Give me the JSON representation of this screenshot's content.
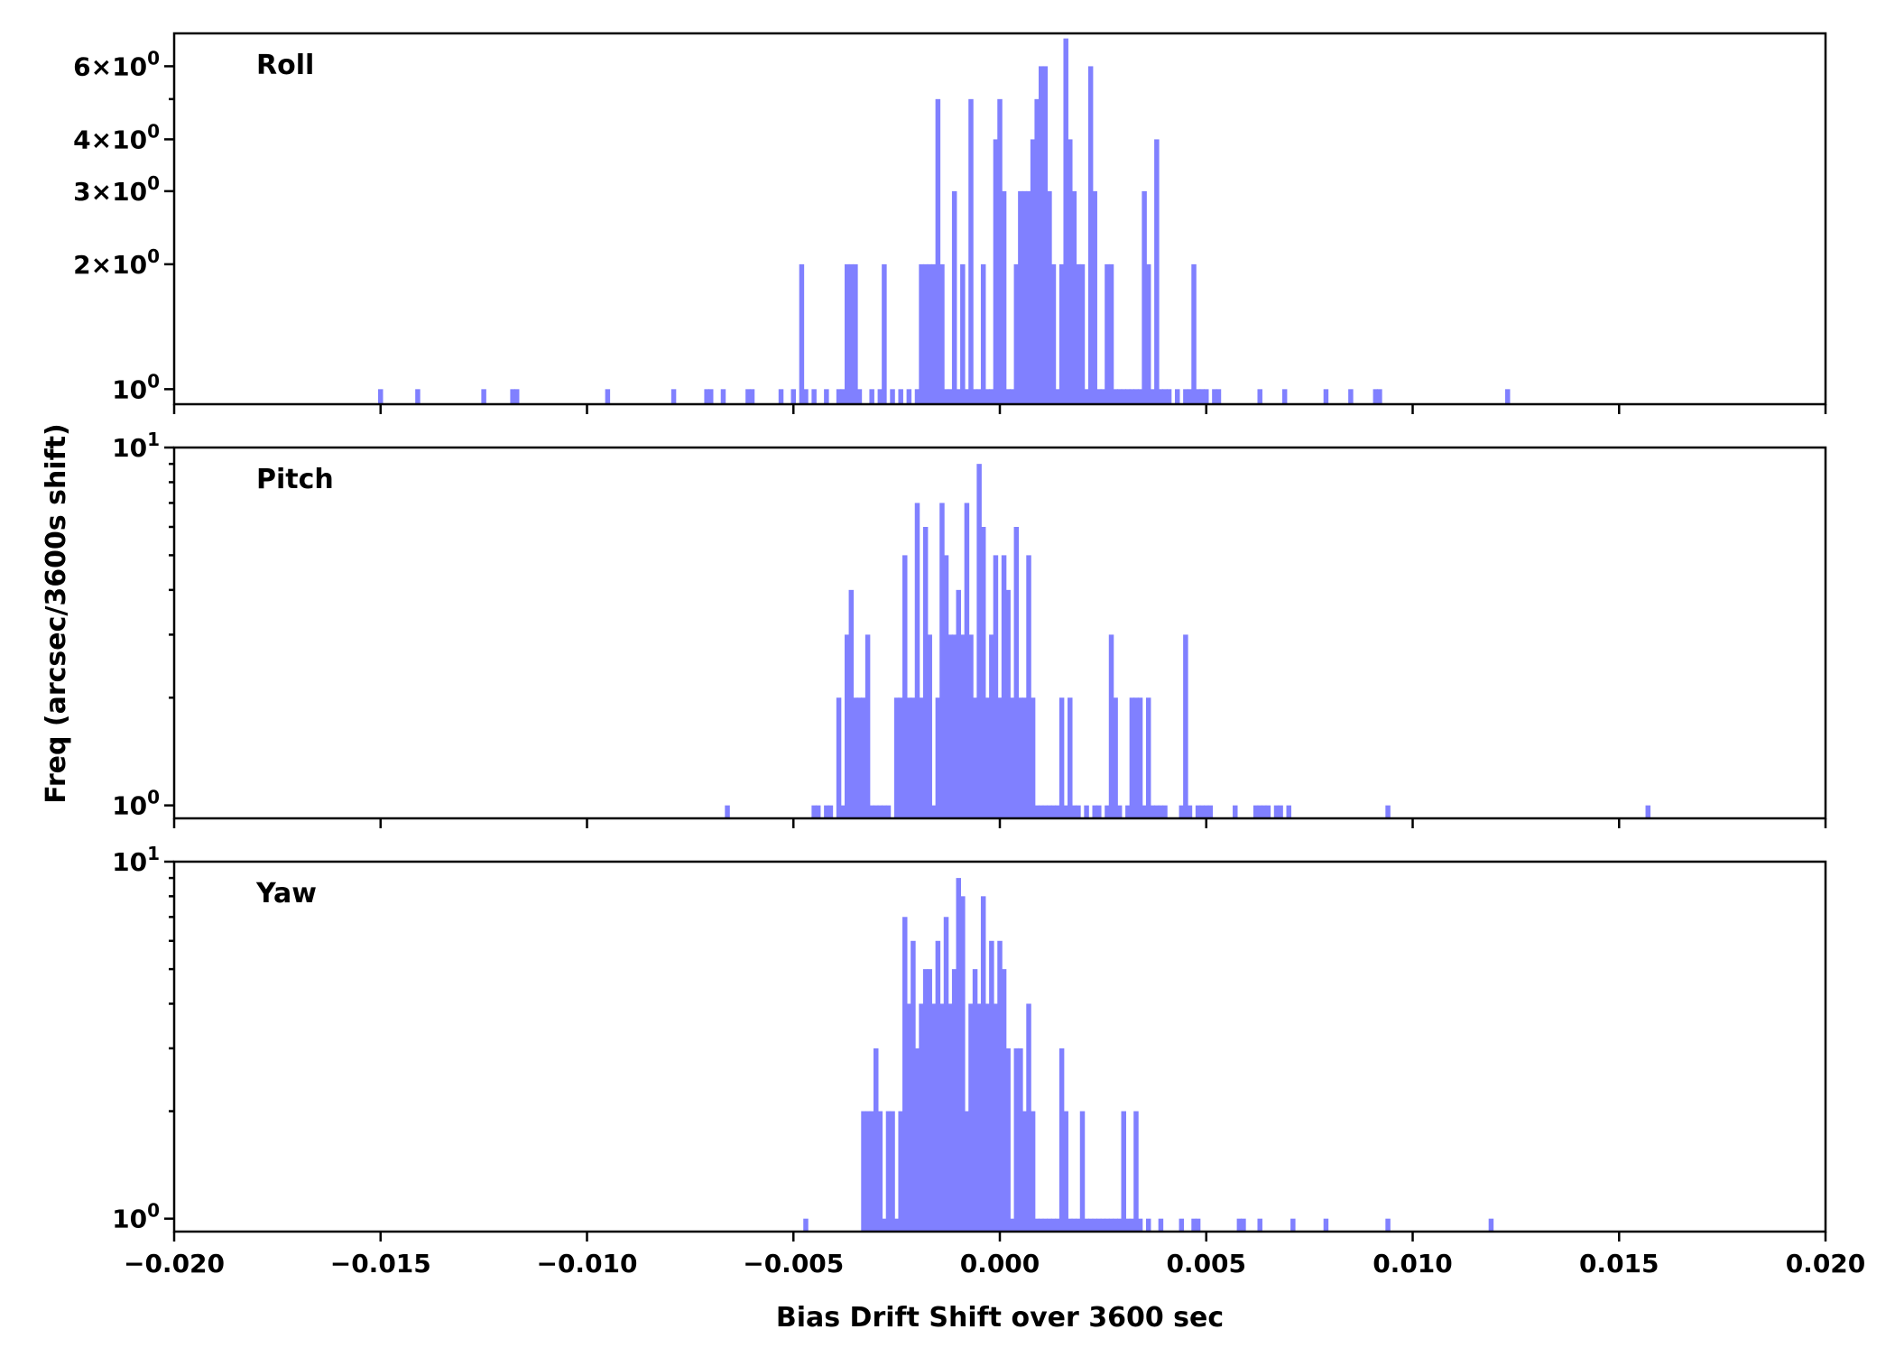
{
  "chart_data": {
    "type": "bar",
    "xlabel": "Bias Drift Shift over 3600 sec",
    "ylabel": "Freq (arcsec/3600s shift)",
    "xlim": [
      -0.02,
      0.02
    ],
    "x_ticks": [
      "−0.020",
      "−0.015",
      "−0.010",
      "−0.005",
      "0.000",
      "0.005",
      "0.010",
      "0.015",
      "0.020"
    ],
    "x_tick_values": [
      -0.02,
      -0.015,
      -0.01,
      -0.005,
      0.0,
      0.005,
      0.01,
      0.015,
      0.02
    ],
    "y_scale": "log",
    "bar_width": 0.00012,
    "bar_color": "#8080ff",
    "panels": [
      {
        "label": "Roll",
        "ylim": [
          0.92,
          7.2
        ],
        "y_ticks": [
          {
            "value": 1,
            "mant": "",
            "exp": "0"
          },
          {
            "value": 2,
            "mant": "2",
            "exp": "0"
          },
          {
            "value": 3,
            "mant": "3",
            "exp": "0"
          },
          {
            "value": 4,
            "mant": "4",
            "exp": "0"
          },
          {
            "value": 6,
            "mant": "6",
            "exp": "0"
          }
        ],
        "minor_ticks": [
          5
        ],
        "bars": [
          [
            -0.015,
            1
          ],
          [
            -0.0141,
            1
          ],
          [
            -0.0125,
            1
          ],
          [
            -0.0118,
            1
          ],
          [
            -0.0117,
            1
          ],
          [
            -0.0095,
            1
          ],
          [
            -0.0079,
            1
          ],
          [
            -0.0071,
            1
          ],
          [
            -0.007,
            1
          ],
          [
            -0.0067,
            1
          ],
          [
            -0.0061,
            1
          ],
          [
            -0.006,
            1
          ],
          [
            -0.0053,
            1
          ],
          [
            -0.005,
            1
          ],
          [
            -0.0048,
            2
          ],
          [
            -0.0047,
            1
          ],
          [
            -0.0045,
            1
          ],
          [
            -0.0042,
            1
          ],
          [
            -0.0039,
            1
          ],
          [
            -0.0038,
            1
          ],
          [
            -0.0037,
            2
          ],
          [
            -0.0036,
            2
          ],
          [
            -0.0035,
            2
          ],
          [
            -0.0034,
            1
          ],
          [
            -0.0031,
            1
          ],
          [
            -0.0029,
            1
          ],
          [
            -0.0028,
            2
          ],
          [
            -0.0026,
            1
          ],
          [
            -0.0024,
            1
          ],
          [
            -0.0022,
            1
          ],
          [
            -0.002,
            1
          ],
          [
            -0.0019,
            2
          ],
          [
            -0.0018,
            2
          ],
          [
            -0.0017,
            2
          ],
          [
            -0.0016,
            2
          ],
          [
            -0.0015,
            5
          ],
          [
            -0.0014,
            2
          ],
          [
            -0.0013,
            1
          ],
          [
            -0.0012,
            1
          ],
          [
            -0.0011,
            3
          ],
          [
            -0.001,
            1
          ],
          [
            -0.0009,
            2
          ],
          [
            -0.0008,
            1
          ],
          [
            -0.0007,
            5
          ],
          [
            -0.0006,
            1
          ],
          [
            -0.0005,
            1
          ],
          [
            -0.0004,
            2
          ],
          [
            -0.0003,
            1
          ],
          [
            -0.0002,
            1
          ],
          [
            -0.0001,
            4
          ],
          [
            0.0,
            5
          ],
          [
            0.0001,
            3
          ],
          [
            0.0002,
            1
          ],
          [
            0.0003,
            1
          ],
          [
            0.0004,
            2
          ],
          [
            0.0005,
            3
          ],
          [
            0.0006,
            3
          ],
          [
            0.0007,
            3
          ],
          [
            0.0008,
            4
          ],
          [
            0.0009,
            5
          ],
          [
            0.001,
            6
          ],
          [
            0.0011,
            6
          ],
          [
            0.0012,
            3
          ],
          [
            0.0013,
            2
          ],
          [
            0.0014,
            1
          ],
          [
            0.0015,
            2
          ],
          [
            0.0016,
            7
          ],
          [
            0.0017,
            4
          ],
          [
            0.0018,
            3
          ],
          [
            0.0019,
            2
          ],
          [
            0.002,
            2
          ],
          [
            0.0021,
            1
          ],
          [
            0.0022,
            6
          ],
          [
            0.0023,
            3
          ],
          [
            0.0024,
            1
          ],
          [
            0.0025,
            1
          ],
          [
            0.0026,
            2
          ],
          [
            0.0027,
            2
          ],
          [
            0.0028,
            1
          ],
          [
            0.0029,
            1
          ],
          [
            0.003,
            1
          ],
          [
            0.0031,
            1
          ],
          [
            0.0032,
            1
          ],
          [
            0.0033,
            1
          ],
          [
            0.0034,
            1
          ],
          [
            0.0035,
            3
          ],
          [
            0.0036,
            2
          ],
          [
            0.0037,
            1
          ],
          [
            0.0038,
            4
          ],
          [
            0.0039,
            1
          ],
          [
            0.004,
            1
          ],
          [
            0.0041,
            1
          ],
          [
            0.0043,
            1
          ],
          [
            0.0045,
            1
          ],
          [
            0.0046,
            1
          ],
          [
            0.0047,
            2
          ],
          [
            0.0048,
            1
          ],
          [
            0.0049,
            1
          ],
          [
            0.005,
            1
          ],
          [
            0.0052,
            1
          ],
          [
            0.0053,
            1
          ],
          [
            0.0063,
            1
          ],
          [
            0.0069,
            1
          ],
          [
            0.0079,
            1
          ],
          [
            0.0085,
            1
          ],
          [
            0.0091,
            1
          ],
          [
            0.0092,
            1
          ],
          [
            0.0123,
            1
          ]
        ]
      },
      {
        "label": "Pitch",
        "ylim": [
          0.92,
          10
        ],
        "y_ticks": [
          {
            "value": 1,
            "mant": "",
            "exp": "0"
          },
          {
            "value": 10,
            "mant": "",
            "exp": "1"
          }
        ],
        "minor_ticks": [
          2,
          3,
          4,
          5,
          6,
          7,
          8,
          9
        ],
        "bars": [
          [
            -0.0066,
            1
          ],
          [
            -0.0045,
            1
          ],
          [
            -0.0044,
            1
          ],
          [
            -0.0042,
            1
          ],
          [
            -0.0041,
            1
          ],
          [
            -0.0039,
            2
          ],
          [
            -0.0038,
            1
          ],
          [
            -0.0037,
            3
          ],
          [
            -0.0036,
            4
          ],
          [
            -0.0035,
            2
          ],
          [
            -0.0034,
            2
          ],
          [
            -0.0033,
            2
          ],
          [
            -0.0032,
            3
          ],
          [
            -0.0031,
            1
          ],
          [
            -0.003,
            1
          ],
          [
            -0.0029,
            1
          ],
          [
            -0.0028,
            1
          ],
          [
            -0.0027,
            1
          ],
          [
            -0.0025,
            2
          ],
          [
            -0.0024,
            2
          ],
          [
            -0.0023,
            5
          ],
          [
            -0.0022,
            2
          ],
          [
            -0.0021,
            2
          ],
          [
            -0.002,
            7
          ],
          [
            -0.0019,
            2
          ],
          [
            -0.0018,
            6
          ],
          [
            -0.0017,
            3
          ],
          [
            -0.0016,
            1
          ],
          [
            -0.0015,
            2
          ],
          [
            -0.0014,
            7
          ],
          [
            -0.0013,
            5
          ],
          [
            -0.0012,
            3
          ],
          [
            -0.0011,
            3
          ],
          [
            -0.001,
            4
          ],
          [
            -0.0009,
            3
          ],
          [
            -0.0008,
            7
          ],
          [
            -0.0007,
            3
          ],
          [
            -0.0006,
            2
          ],
          [
            -0.0005,
            9
          ],
          [
            -0.0004,
            6
          ],
          [
            -0.0003,
            2
          ],
          [
            -0.0002,
            3
          ],
          [
            -0.0001,
            5
          ],
          [
            0.0,
            2
          ],
          [
            0.0001,
            5
          ],
          [
            0.0002,
            4
          ],
          [
            0.0003,
            2
          ],
          [
            0.0004,
            6
          ],
          [
            0.0005,
            2
          ],
          [
            0.0006,
            2
          ],
          [
            0.0007,
            5
          ],
          [
            0.0008,
            2
          ],
          [
            0.0009,
            1
          ],
          [
            0.001,
            1
          ],
          [
            0.0011,
            1
          ],
          [
            0.0012,
            1
          ],
          [
            0.0013,
            1
          ],
          [
            0.0014,
            1
          ],
          [
            0.0015,
            2
          ],
          [
            0.0016,
            1
          ],
          [
            0.0017,
            2
          ],
          [
            0.0018,
            1
          ],
          [
            0.0019,
            1
          ],
          [
            0.0021,
            1
          ],
          [
            0.0023,
            1
          ],
          [
            0.0024,
            1
          ],
          [
            0.0026,
            1
          ],
          [
            0.0027,
            3
          ],
          [
            0.0028,
            2
          ],
          [
            0.0029,
            1
          ],
          [
            0.0031,
            1
          ],
          [
            0.0032,
            2
          ],
          [
            0.0033,
            2
          ],
          [
            0.0034,
            2
          ],
          [
            0.0035,
            1
          ],
          [
            0.0036,
            2
          ],
          [
            0.0037,
            1
          ],
          [
            0.0038,
            1
          ],
          [
            0.0039,
            1
          ],
          [
            0.004,
            1
          ],
          [
            0.0044,
            1
          ],
          [
            0.0045,
            3
          ],
          [
            0.0046,
            1
          ],
          [
            0.0048,
            1
          ],
          [
            0.0049,
            1
          ],
          [
            0.005,
            1
          ],
          [
            0.0051,
            1
          ],
          [
            0.0057,
            1
          ],
          [
            0.0062,
            1
          ],
          [
            0.0063,
            1
          ],
          [
            0.0064,
            1
          ],
          [
            0.0065,
            1
          ],
          [
            0.0067,
            1
          ],
          [
            0.0068,
            1
          ],
          [
            0.007,
            1
          ],
          [
            0.0094,
            1
          ],
          [
            0.0157,
            1
          ]
        ]
      },
      {
        "label": "Yaw",
        "ylim": [
          0.92,
          10
        ],
        "y_ticks": [
          {
            "value": 1,
            "mant": "",
            "exp": "0"
          },
          {
            "value": 10,
            "mant": "",
            "exp": "1"
          }
        ],
        "minor_ticks": [
          2,
          3,
          4,
          5,
          6,
          7,
          8,
          9
        ],
        "bars": [
          [
            -0.0047,
            1
          ],
          [
            -0.0033,
            2
          ],
          [
            -0.0032,
            2
          ],
          [
            -0.0031,
            2
          ],
          [
            -0.003,
            3
          ],
          [
            -0.0029,
            2
          ],
          [
            -0.0028,
            1
          ],
          [
            -0.0027,
            2
          ],
          [
            -0.0026,
            2
          ],
          [
            -0.0025,
            1
          ],
          [
            -0.0024,
            2
          ],
          [
            -0.0023,
            7
          ],
          [
            -0.0022,
            4
          ],
          [
            -0.0021,
            6
          ],
          [
            -0.002,
            3
          ],
          [
            -0.0019,
            4
          ],
          [
            -0.0018,
            5
          ],
          [
            -0.0017,
            5
          ],
          [
            -0.0016,
            4
          ],
          [
            -0.0015,
            6
          ],
          [
            -0.0014,
            4
          ],
          [
            -0.0013,
            7
          ],
          [
            -0.0012,
            4
          ],
          [
            -0.0011,
            5
          ],
          [
            -0.001,
            9
          ],
          [
            -0.0009,
            8
          ],
          [
            -0.0008,
            2
          ],
          [
            -0.0007,
            4
          ],
          [
            -0.0006,
            5
          ],
          [
            -0.0005,
            4
          ],
          [
            -0.0004,
            8
          ],
          [
            -0.0003,
            4
          ],
          [
            -0.0002,
            6
          ],
          [
            -0.0001,
            4
          ],
          [
            0.0,
            6
          ],
          [
            0.0001,
            5
          ],
          [
            0.0002,
            3
          ],
          [
            0.0003,
            1
          ],
          [
            0.0004,
            3
          ],
          [
            0.0005,
            3
          ],
          [
            0.0006,
            2
          ],
          [
            0.0007,
            4
          ],
          [
            0.0008,
            2
          ],
          [
            0.0009,
            1
          ],
          [
            0.001,
            1
          ],
          [
            0.0011,
            1
          ],
          [
            0.0012,
            1
          ],
          [
            0.0013,
            1
          ],
          [
            0.0014,
            1
          ],
          [
            0.0015,
            3
          ],
          [
            0.0016,
            2
          ],
          [
            0.0017,
            1
          ],
          [
            0.0018,
            1
          ],
          [
            0.0019,
            1
          ],
          [
            0.002,
            2
          ],
          [
            0.0021,
            1
          ],
          [
            0.0022,
            1
          ],
          [
            0.0023,
            1
          ],
          [
            0.0024,
            1
          ],
          [
            0.0025,
            1
          ],
          [
            0.0026,
            1
          ],
          [
            0.0027,
            1
          ],
          [
            0.0028,
            1
          ],
          [
            0.0029,
            1
          ],
          [
            0.003,
            2
          ],
          [
            0.0031,
            1
          ],
          [
            0.0032,
            1
          ],
          [
            0.0033,
            2
          ],
          [
            0.0034,
            1
          ],
          [
            0.0036,
            1
          ],
          [
            0.0039,
            1
          ],
          [
            0.0044,
            1
          ],
          [
            0.0047,
            1
          ],
          [
            0.0048,
            1
          ],
          [
            0.0058,
            1
          ],
          [
            0.0059,
            1
          ],
          [
            0.0063,
            1
          ],
          [
            0.0071,
            1
          ],
          [
            0.0079,
            1
          ],
          [
            0.0094,
            1
          ],
          [
            0.0119,
            1
          ]
        ]
      }
    ]
  }
}
